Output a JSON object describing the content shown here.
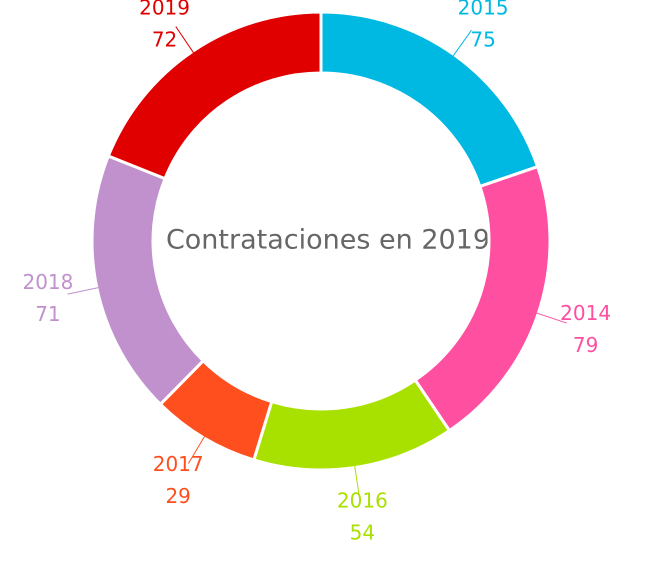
{
  "chart_data": {
    "type": "donut",
    "title": "Contrataciones en 2019",
    "categories": [
      "2015",
      "2014",
      "2016",
      "2017",
      "2018",
      "2019"
    ],
    "values": [
      75,
      79,
      54,
      29,
      71,
      72
    ],
    "colors": [
      "#00b9e3",
      "#ff4fa0",
      "#a8e100",
      "#ff4f1f",
      "#c091cc",
      "#e10000"
    ]
  }
}
